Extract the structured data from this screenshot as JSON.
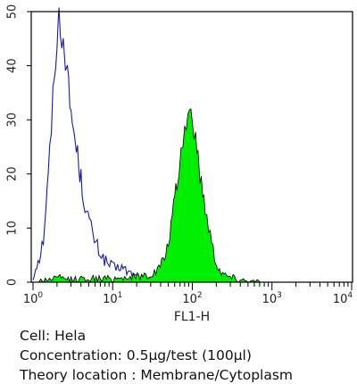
{
  "chart_data": {
    "type": "area",
    "title": "",
    "xlabel": "FL1-H",
    "ylabel": "",
    "x_scale": "log",
    "xlim": [
      1,
      10000
    ],
    "ylim": [
      0,
      50
    ],
    "x_ticks": [
      {
        "value": 1,
        "label": "10",
        "exp": "0"
      },
      {
        "value": 10,
        "label": "10",
        "exp": "1"
      },
      {
        "value": 100,
        "label": "10",
        "exp": "2"
      },
      {
        "value": 1000,
        "label": "10",
        "exp": "3"
      },
      {
        "value": 10000,
        "label": "10",
        "exp": "4"
      }
    ],
    "y_ticks": [
      "0",
      "10",
      "20",
      "30",
      "40",
      "50"
    ],
    "grid": false,
    "series": [
      {
        "style": "outline",
        "color": "#1a1aa8",
        "points": [
          [
            1.0,
            0.5
          ],
          [
            1.08,
            3
          ],
          [
            1.2,
            4.5
          ],
          [
            1.35,
            8
          ],
          [
            1.45,
            14
          ],
          [
            1.55,
            19
          ],
          [
            1.62,
            24
          ],
          [
            1.7,
            29
          ],
          [
            1.78,
            34
          ],
          [
            1.85,
            38
          ],
          [
            1.92,
            42
          ],
          [
            2.0,
            45
          ],
          [
            2.07,
            47
          ],
          [
            2.12,
            49.5
          ],
          [
            2.2,
            48
          ],
          [
            2.3,
            46
          ],
          [
            2.4,
            45
          ],
          [
            2.55,
            42
          ],
          [
            2.7,
            38
          ],
          [
            2.9,
            33
          ],
          [
            3.1,
            30
          ],
          [
            3.3,
            27
          ],
          [
            3.5,
            25
          ],
          [
            3.75,
            22
          ],
          [
            4.0,
            19
          ],
          [
            4.3,
            16
          ],
          [
            4.7,
            13
          ],
          [
            5.1,
            11
          ],
          [
            5.6,
            9
          ],
          [
            6.2,
            7
          ],
          [
            6.9,
            5.5
          ],
          [
            7.6,
            4.5
          ],
          [
            8.5,
            3.5
          ],
          [
            9.5,
            3
          ],
          [
            10.5,
            2.5
          ],
          [
            11.5,
            2.5
          ],
          [
            12.5,
            3
          ],
          [
            13.5,
            2.5
          ],
          [
            15,
            2
          ],
          [
            17,
            1.5
          ],
          [
            20,
            1
          ],
          [
            25,
            0.5
          ],
          [
            30,
            0.3
          ],
          [
            40,
            0.1
          ]
        ]
      },
      {
        "style": "filled",
        "color": "#00ee00",
        "points": [
          [
            1.2,
            0.3
          ],
          [
            2,
            0.8
          ],
          [
            3,
            0.5
          ],
          [
            5,
            0.7
          ],
          [
            8,
            0.6
          ],
          [
            12,
            0.8
          ],
          [
            18,
            1
          ],
          [
            25,
            1.2
          ],
          [
            32,
            1.5
          ],
          [
            38,
            2.5
          ],
          [
            43,
            4
          ],
          [
            48,
            6
          ],
          [
            52,
            9
          ],
          [
            56,
            12
          ],
          [
            60,
            15
          ],
          [
            64,
            18
          ],
          [
            68,
            21
          ],
          [
            72,
            24
          ],
          [
            76,
            26
          ],
          [
            80,
            28
          ],
          [
            84,
            30
          ],
          [
            88,
            31
          ],
          [
            92,
            32
          ],
          [
            96,
            31
          ],
          [
            100,
            30
          ],
          [
            105,
            28.5
          ],
          [
            110,
            26
          ],
          [
            118,
            23
          ],
          [
            125,
            20
          ],
          [
            135,
            17
          ],
          [
            145,
            14
          ],
          [
            160,
            10.5
          ],
          [
            175,
            7.5
          ],
          [
            190,
            5
          ],
          [
            210,
            3
          ],
          [
            230,
            2
          ],
          [
            260,
            1.3
          ],
          [
            300,
            1
          ],
          [
            350,
            0.7
          ],
          [
            400,
            0.6
          ],
          [
            500,
            0.2
          ],
          [
            700,
            0.1
          ]
        ]
      }
    ]
  },
  "caption": {
    "cell": "Cell: Hela",
    "concentration": "Concentration: 0.5µg/test (100µl)",
    "location": "Theory location : Membrane/Cytoplasm"
  }
}
